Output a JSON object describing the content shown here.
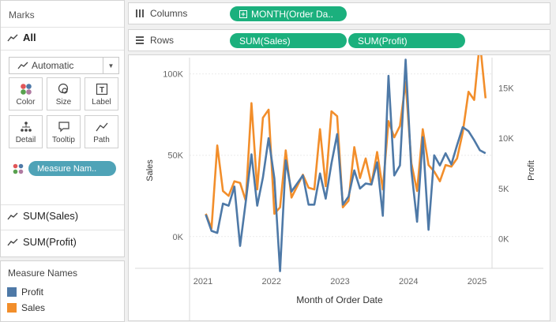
{
  "marks": {
    "header": "Marks",
    "all_label": "All",
    "mark_type": "Automatic",
    "buttons": [
      {
        "label": "Color",
        "icon": "color-dots-icon"
      },
      {
        "label": "Size",
        "icon": "size-circles-icon"
      },
      {
        "label": "Label",
        "icon": "label-t-icon"
      },
      {
        "label": "Detail",
        "icon": "detail-tree-icon"
      },
      {
        "label": "Tooltip",
        "icon": "tooltip-bubble-icon"
      },
      {
        "label": "Path",
        "icon": "path-line-icon"
      }
    ],
    "color_pill": "Measure Nam..",
    "sum_sales": "SUM(Sales)",
    "sum_profit": "SUM(Profit)"
  },
  "legend": {
    "title": "Measure Names",
    "items": [
      {
        "label": "Profit",
        "color": "#4e79a7"
      },
      {
        "label": "Sales",
        "color": "#f28e2b"
      }
    ]
  },
  "shelves": {
    "columns_label": "Columns",
    "columns_pill": "MONTH(Order Da..",
    "rows_label": "Rows",
    "rows_pills": [
      "SUM(Sales)",
      "SUM(Profit)"
    ]
  },
  "chart_data": {
    "type": "line",
    "xlabel": "Month of Order Date",
    "ylabel_left": "Sales",
    "ylabel_right": "Profit",
    "x_ticks": [
      "2021",
      "2022",
      "2023",
      "2024",
      "2025"
    ],
    "x_start_year": 2021,
    "left_ticks": [
      "100K",
      "50K",
      "0K"
    ],
    "left_tick_values": [
      100000,
      50000,
      0
    ],
    "left_range": [
      -20000,
      110000
    ],
    "right_ticks": [
      "15K",
      "10K",
      "5K",
      "0K"
    ],
    "right_tick_values": [
      15000,
      10000,
      5000,
      0
    ],
    "right_range": [
      -3000,
      18000
    ],
    "series": [
      {
        "name": "Sales",
        "color": "#f28e2b",
        "axis": "left",
        "values": [
          14000,
          5000,
          56000,
          28000,
          25000,
          34000,
          33000,
          22000,
          82000,
          29000,
          73000,
          78000,
          14000,
          18000,
          53000,
          24000,
          31000,
          38000,
          30000,
          29000,
          66000,
          31000,
          77000,
          74000,
          18000,
          22000,
          55000,
          36000,
          48000,
          32000,
          52000,
          29000,
          71000,
          61000,
          68000,
          95000,
          45000,
          28000,
          66000,
          44000,
          40000,
          34000,
          44000,
          43000,
          48000,
          64000,
          89000,
          84000,
          120000,
          85000
        ]
      },
      {
        "name": "Profit",
        "color": "#4e79a7",
        "axis": "right",
        "values": [
          2400,
          800,
          600,
          3500,
          3300,
          5200,
          -700,
          3700,
          8400,
          3300,
          6100,
          10000,
          6000,
          -3200,
          7800,
          4700,
          5500,
          6300,
          3400,
          3400,
          6500,
          4000,
          7500,
          10400,
          3400,
          4200,
          6800,
          5000,
          5500,
          5400,
          7600,
          2300,
          16200,
          6300,
          7300,
          17800,
          6800,
          1700,
          10100,
          900,
          8300,
          7300,
          8500,
          7400,
          9300,
          11100,
          10700,
          9800,
          8800,
          8500
        ]
      }
    ]
  }
}
